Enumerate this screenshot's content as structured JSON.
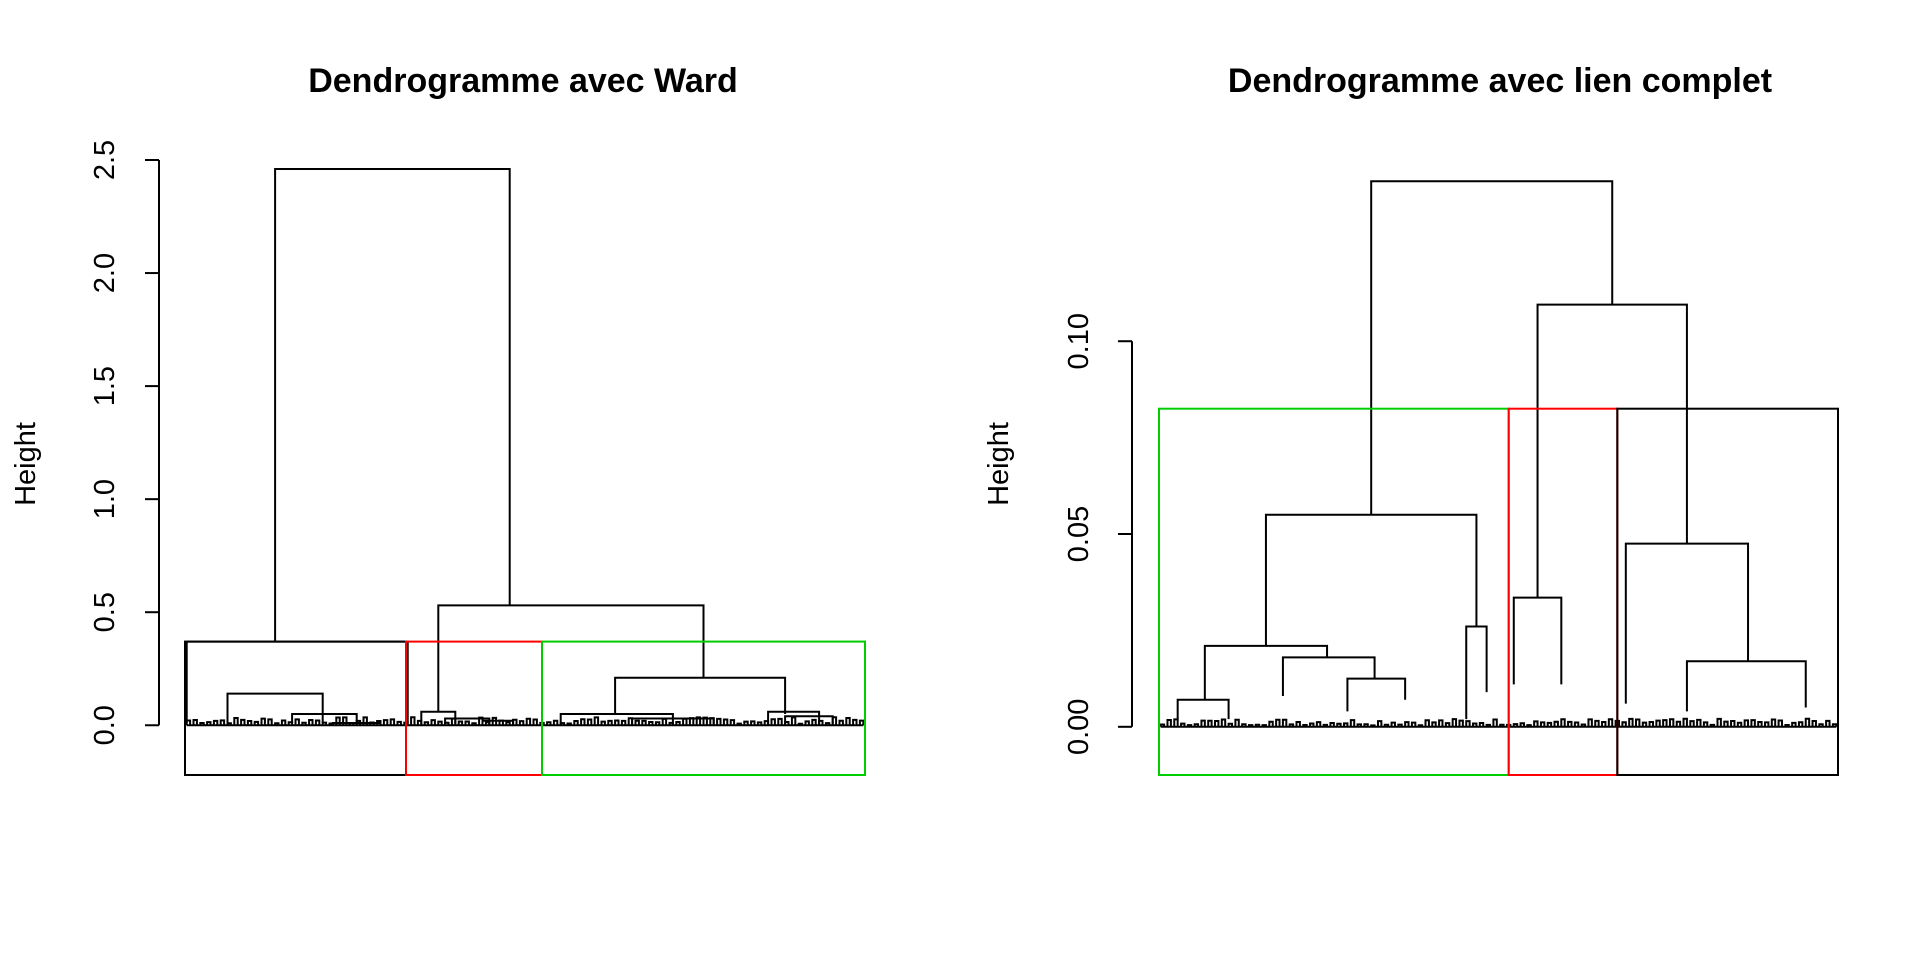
{
  "chart_data": [
    {
      "type": "dendrogram",
      "title": "Dendrogramme avec Ward",
      "xlabel": "",
      "ylabel": "Height",
      "ylim": [
        -0.22,
        2.5
      ],
      "yticks": [
        0.0,
        0.5,
        1.0,
        1.5,
        2.0,
        2.5
      ],
      "ytick_labels": [
        "0.0",
        "0.5",
        "1.0",
        "1.5",
        "2.0",
        "2.5"
      ],
      "n_leaves": 200,
      "cluster_cut_height": 0.37,
      "cluster_rect_bottom": -0.22,
      "clusters": [
        {
          "leaf_start": 0,
          "leaf_end": 65,
          "color": "#000000"
        },
        {
          "leaf_start": 65,
          "leaf_end": 105,
          "color": "#ff0000"
        },
        {
          "leaf_start": 105,
          "leaf_end": 200,
          "color": "#00cd00"
        }
      ],
      "merges": [
        {
          "x1": 12,
          "x2": 40,
          "h": 0.14,
          "h1": 0.01,
          "h2": 0.01
        },
        {
          "x1": 31,
          "x2": 50,
          "h": 0.05,
          "h1": 0.01,
          "h2": 0.01
        },
        {
          "x1": 43,
          "x2": 57,
          "h": 0.01,
          "h1": 0.0,
          "h2": 0.0
        },
        {
          "x1": 26,
          "x2": 95,
          "h": 2.46,
          "h1": 0.37,
          "h2": 0.53
        },
        {
          "x1": 0,
          "x2": 65,
          "h": 0.37,
          "h1": 0.01,
          "h2": 0.01
        },
        {
          "x1": 74,
          "x2": 152,
          "h": 0.53,
          "h1": 0.06,
          "h2": 0.21
        },
        {
          "x1": 69,
          "x2": 79,
          "h": 0.06,
          "h1": 0.0,
          "h2": 0.0
        },
        {
          "x1": 76,
          "x2": 89,
          "h": 0.03,
          "h1": 0.0,
          "h2": 0.0
        },
        {
          "x1": 87,
          "x2": 96,
          "h": 0.02,
          "h1": 0.0,
          "h2": 0.0
        },
        {
          "x1": 126,
          "x2": 176,
          "h": 0.21,
          "h1": 0.05,
          "h2": 0.05
        },
        {
          "x1": 110,
          "x2": 143,
          "h": 0.05,
          "h1": 0.0,
          "h2": 0.0
        },
        {
          "x1": 131,
          "x2": 155,
          "h": 0.03,
          "h1": 0.0,
          "h2": 0.0
        },
        {
          "x1": 171,
          "x2": 186,
          "h": 0.06,
          "h1": 0.0,
          "h2": 0.0
        },
        {
          "x1": 176,
          "x2": 190,
          "h": 0.04,
          "h1": 0.0,
          "h2": 0.0
        }
      ]
    },
    {
      "type": "dendrogram",
      "title": "Dendrogramme avec lien complet",
      "xlabel": "",
      "ylabel": "Height",
      "ylim": [
        -0.0125,
        0.147
      ],
      "yticks": [
        0.0,
        0.05,
        0.1
      ],
      "ytick_labels": [
        "0.00",
        "0.05",
        "0.10"
      ],
      "n_leaves": 200,
      "cluster_cut_height": 0.0825,
      "cluster_rect_bottom": -0.0125,
      "clusters": [
        {
          "leaf_start": 0,
          "leaf_end": 103,
          "color": "#00cd00"
        },
        {
          "leaf_start": 103,
          "leaf_end": 135,
          "color": "#ff0000"
        },
        {
          "leaf_start": 135,
          "leaf_end": 200,
          "color": "#000000"
        }
      ],
      "merges": [
        {
          "x1": 62,
          "x2": 133,
          "h": 0.1415,
          "h1": 0.055,
          "h2": 0.1095
        },
        {
          "x1": 111,
          "x2": 155,
          "h": 0.1095,
          "h1": 0.0335,
          "h2": 0.0475
        },
        {
          "x1": 31,
          "x2": 93,
          "h": 0.055,
          "h1": 0.021,
          "h2": 0.026
        },
        {
          "x1": 13,
          "x2": 49,
          "h": 0.021,
          "h1": 0.007,
          "h2": 0.018
        },
        {
          "x1": 5,
          "x2": 20,
          "h": 0.007,
          "h1": 0.002,
          "h2": 0.002
        },
        {
          "x1": 36,
          "x2": 63,
          "h": 0.018,
          "h1": 0.008,
          "h2": 0.0125
        },
        {
          "x1": 55,
          "x2": 72,
          "h": 0.0125,
          "h1": 0.004,
          "h2": 0.007
        },
        {
          "x1": 90,
          "x2": 96,
          "h": 0.026,
          "h1": 0.002,
          "h2": 0.009
        },
        {
          "x1": 104,
          "x2": 118,
          "h": 0.0335,
          "h1": 0.011,
          "h2": 0.011
        },
        {
          "x1": 137,
          "x2": 173,
          "h": 0.0475,
          "h1": 0.006,
          "h2": 0.017
        },
        {
          "x1": 155,
          "x2": 190,
          "h": 0.017,
          "h1": 0.004,
          "h2": 0.005
        }
      ]
    }
  ]
}
